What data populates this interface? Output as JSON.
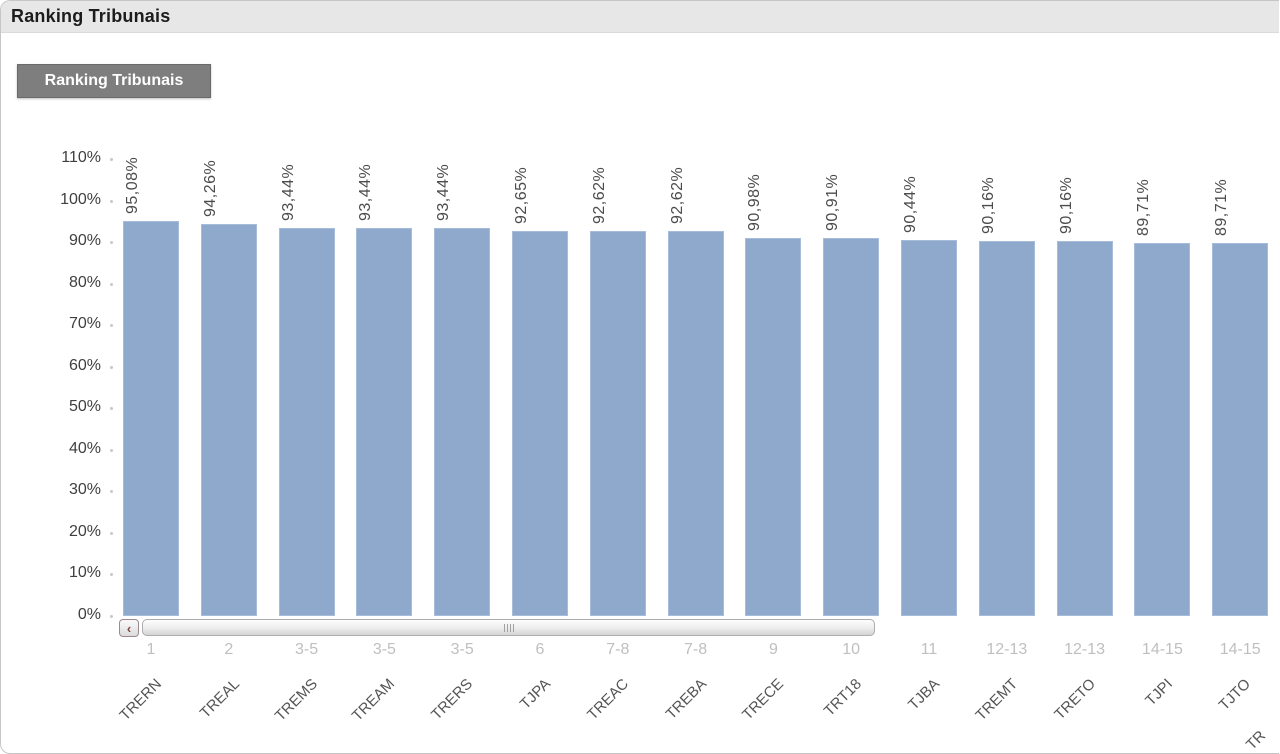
{
  "window": {
    "title": "Ranking Tribunais"
  },
  "caption_tab": {
    "label": "Ranking Tribunais"
  },
  "chart_data": {
    "type": "bar",
    "title": "Ranking Tribunais",
    "categories": [
      "TRERN",
      "TREAL",
      "TREMS",
      "TREAM",
      "TRERS",
      "TJPA",
      "TREAC",
      "TREBA",
      "TRECE",
      "TRT18",
      "TJBA",
      "TREMT",
      "TRETO",
      "TJPI",
      "TJTO"
    ],
    "values": [
      95.08,
      94.26,
      93.44,
      93.44,
      93.44,
      92.65,
      92.62,
      92.62,
      90.98,
      90.91,
      90.44,
      90.16,
      90.16,
      89.71,
      89.71
    ],
    "value_labels": [
      "95,08%",
      "94,26%",
      "93,44%",
      "93,44%",
      "93,44%",
      "92,65%",
      "92,62%",
      "92,62%",
      "90,98%",
      "90,91%",
      "90,44%",
      "90,16%",
      "90,16%",
      "89,71%",
      "89,71%"
    ],
    "rank_labels": [
      "1",
      "2",
      "3-5",
      "3-5",
      "3-5",
      "6",
      "7-8",
      "7-8",
      "9",
      "10",
      "11",
      "12-13",
      "12-13",
      "14-15",
      "14-15"
    ],
    "partial_next_category": "TR",
    "y_ticks": [
      "0%",
      "10%",
      "20%",
      "30%",
      "40%",
      "50%",
      "60%",
      "70%",
      "80%",
      "90%",
      "100%",
      "110%"
    ],
    "ylim": [
      0,
      110
    ],
    "xlabel": "",
    "ylabel": "",
    "grid": "off",
    "legend": "none",
    "bar_color": "#8FA9CC"
  },
  "scrollbar": {
    "left_arrow_icon": "chevron-left",
    "left_arrow_glyph": "‹"
  }
}
